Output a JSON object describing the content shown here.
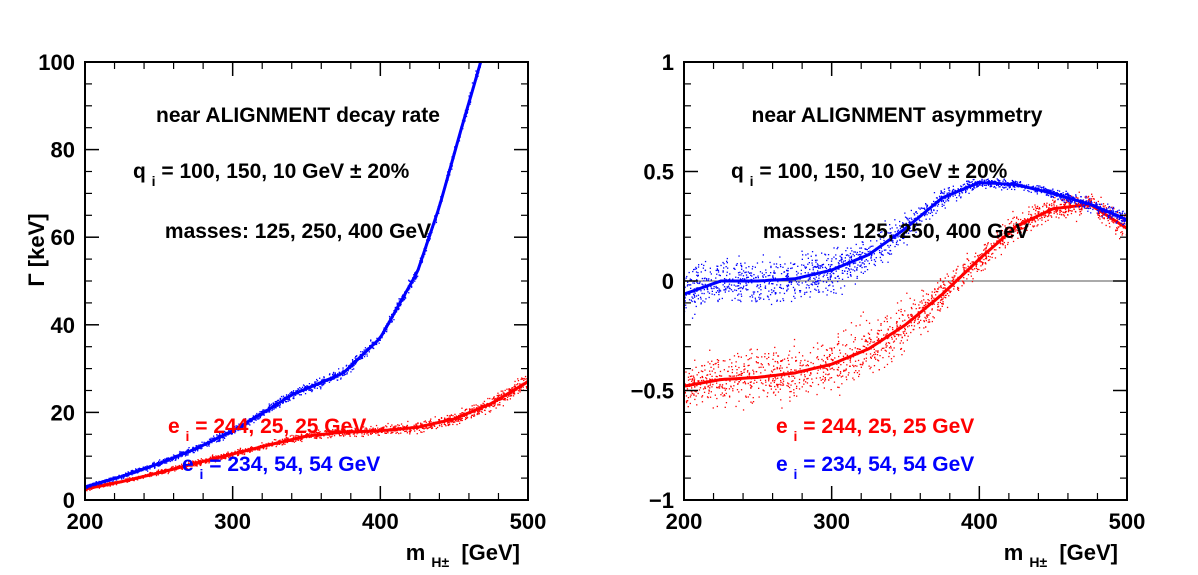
{
  "chart_data": [
    {
      "type": "scatter",
      "title": "",
      "xlabel": "m",
      "xlabel_sub": "H±",
      "xlabel_unit": "[GeV]",
      "ylabel": "Γ [keV]",
      "xlim": [
        200,
        500
      ],
      "ylim": [
        0,
        100
      ],
      "xticks": [
        "200",
        "300",
        "400",
        "500"
      ],
      "yticks": [
        "0",
        "20",
        "40",
        "60",
        "80",
        "100"
      ],
      "annotations": {
        "line1": "near ALIGNMENT decay rate",
        "line2_pre": "q",
        "line2_sub": "i",
        "line2_post": " = 100, 150, 10 GeV ± 20%",
        "line3": "masses: 125, 250, 400 GeV"
      },
      "legend": [
        {
          "pre": "e",
          "sub": "i",
          "post": " = 244, 25, 25 GeV",
          "color": "#ff0000"
        },
        {
          "pre": "e",
          "sub": "i",
          "post": " = 234, 54, 54 GeV",
          "color": "#0000ff"
        }
      ],
      "series": [
        {
          "name": "e_i = 244, 25, 25 GeV",
          "color": "#ff0000",
          "x": [
            200,
            225,
            250,
            275,
            300,
            325,
            350,
            375,
            400,
            425,
            450,
            475,
            500
          ],
          "y": [
            2.5,
            4.2,
            6.2,
            8.4,
            10.5,
            12.6,
            14.6,
            15.5,
            15.8,
            16.6,
            18.5,
            22.0,
            27.0
          ],
          "spread": [
            0.4,
            0.4,
            0.5,
            0.6,
            0.6,
            0.7,
            0.8,
            0.9,
            1.0,
            1.1,
            1.3,
            1.5,
            1.8
          ]
        },
        {
          "name": "e_i = 234, 54, 54 GeV",
          "color": "#0000ff",
          "x": [
            200,
            225,
            250,
            275,
            300,
            325,
            340,
            375,
            400,
            425,
            440,
            455,
            468
          ],
          "y": [
            3.0,
            5.4,
            8.3,
            11.7,
            15.8,
            20.8,
            24.0,
            29.0,
            37.0,
            52.0,
            67.0,
            85.0,
            100.0
          ],
          "spread": [
            0.4,
            0.5,
            0.6,
            0.7,
            0.8,
            0.9,
            1.0,
            1.0,
            1.1,
            1.2,
            1.3,
            1.4,
            1.5
          ]
        }
      ]
    },
    {
      "type": "scatter",
      "title": "",
      "xlabel": "m",
      "xlabel_sub": "H±",
      "xlabel_unit": "[GeV]",
      "ylabel": "",
      "xlim": [
        200,
        500
      ],
      "ylim": [
        -1,
        1
      ],
      "xticks": [
        "200",
        "300",
        "400",
        "500"
      ],
      "yticks": [
        "−1",
        "−0.5",
        "0",
        "0.5",
        "1"
      ],
      "reference_line": 0,
      "annotations": {
        "line1": "near ALIGNMENT asymmetry",
        "line2_pre": "q",
        "line2_sub": "i",
        "line2_post": " = 100, 150, 10 GeV ± 20%",
        "line3": "masses: 125, 250, 400 GeV"
      },
      "legend": [
        {
          "pre": "e",
          "sub": " i",
          "post": " = 244, 25, 25 GeV",
          "color": "#ff0000"
        },
        {
          "pre": "e",
          "sub": "i",
          "post": " = 234, 54, 54 GeV",
          "color": "#0000ff"
        }
      ],
      "series": [
        {
          "name": "e_i = 244, 25, 25 GeV",
          "color": "#ff0000",
          "x": [
            200,
            225,
            250,
            275,
            300,
            325,
            350,
            375,
            400,
            425,
            450,
            475,
            500
          ],
          "y": [
            -0.48,
            -0.45,
            -0.44,
            -0.42,
            -0.38,
            -0.31,
            -0.2,
            -0.06,
            0.1,
            0.25,
            0.33,
            0.35,
            0.24
          ],
          "spread": [
            0.08,
            0.1,
            0.11,
            0.12,
            0.12,
            0.12,
            0.1,
            0.08,
            0.06,
            0.05,
            0.05,
            0.06,
            0.07
          ]
        },
        {
          "name": "e_i = 234, 54, 54 GeV",
          "color": "#0000ff",
          "x": [
            200,
            225,
            250,
            275,
            300,
            325,
            350,
            375,
            400,
            425,
            450,
            475,
            500
          ],
          "y": [
            -0.06,
            0.0,
            0.0,
            0.01,
            0.05,
            0.12,
            0.24,
            0.38,
            0.45,
            0.44,
            0.4,
            0.35,
            0.28
          ],
          "spread": [
            0.1,
            0.1,
            0.1,
            0.1,
            0.09,
            0.08,
            0.06,
            0.04,
            0.02,
            0.02,
            0.02,
            0.03,
            0.03
          ]
        }
      ]
    }
  ]
}
